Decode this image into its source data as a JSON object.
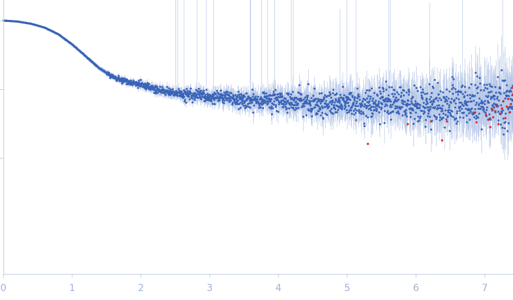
{
  "chart_data": {
    "type": "scatter",
    "title": "",
    "xlabel": "",
    "ylabel": "",
    "xlim": [
      0,
      7.42
    ],
    "x_ticks": [
      "0",
      "1",
      "2",
      "3",
      "4",
      "5",
      "6",
      "7"
    ],
    "y_scale": "log",
    "y_ticks_labeled": false,
    "grid": false,
    "legend": "none",
    "colors": {
      "points": "#3a64b8",
      "error_bars": "#b7c8e8",
      "outliers": "#e0281e",
      "axis": "#c4d0e6",
      "tick_labels": "#9fb3d6"
    },
    "series": [
      {
        "role": "measured intensity with error bars",
        "curve_points": [
          [
            0.0,
            1.0
          ],
          [
            0.2,
            0.97
          ],
          [
            0.4,
            0.9
          ],
          [
            0.6,
            0.79
          ],
          [
            0.8,
            0.63
          ],
          [
            1.0,
            0.45
          ],
          [
            1.2,
            0.3
          ],
          [
            1.4,
            0.2
          ],
          [
            1.6,
            0.15
          ],
          [
            1.8,
            0.13
          ],
          [
            2.0,
            0.115
          ],
          [
            2.2,
            0.1
          ],
          [
            2.5,
            0.088
          ],
          [
            3.0,
            0.078
          ],
          [
            3.5,
            0.07
          ],
          [
            4.0,
            0.066
          ],
          [
            4.5,
            0.063
          ],
          [
            5.0,
            0.061
          ],
          [
            5.5,
            0.06
          ],
          [
            6.0,
            0.06
          ],
          [
            6.5,
            0.061
          ],
          [
            7.0,
            0.063
          ],
          [
            7.42,
            0.066
          ]
        ]
      },
      {
        "role": "outlier points",
        "points": [
          [
            5.3,
            0.016
          ],
          [
            5.88,
            0.031
          ],
          [
            6.22,
            0.034
          ],
          [
            6.38,
            0.018
          ],
          [
            6.45,
            0.034
          ],
          [
            6.86,
            0.046
          ],
          [
            6.88,
            0.033
          ],
          [
            7.02,
            0.042
          ],
          [
            7.05,
            0.036
          ],
          [
            7.08,
            0.028
          ],
          [
            7.1,
            0.052
          ],
          [
            7.12,
            0.039
          ],
          [
            7.15,
            0.048
          ],
          [
            7.18,
            0.058
          ],
          [
            7.2,
            0.031
          ],
          [
            7.22,
            0.044
          ],
          [
            7.25,
            0.052
          ],
          [
            7.27,
            0.067
          ],
          [
            7.3,
            0.038
          ],
          [
            7.32,
            0.056
          ],
          [
            7.34,
            0.072
          ],
          [
            7.36,
            0.046
          ],
          [
            7.38,
            0.061
          ],
          [
            7.4,
            0.082
          ],
          [
            7.41,
            0.105
          ]
        ]
      }
    ]
  }
}
